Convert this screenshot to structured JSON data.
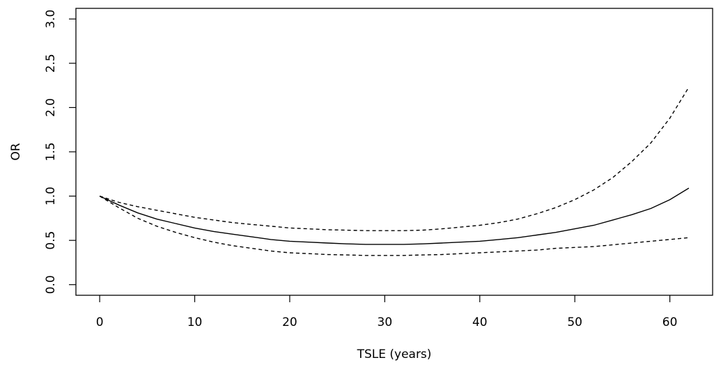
{
  "chart_data": {
    "type": "line",
    "title": "",
    "xlabel": "TSLE (years)",
    "ylabel": "OR",
    "xlim": [
      -2.5,
      64.5
    ],
    "ylim": [
      -0.12,
      3.12
    ],
    "xticks": [
      0,
      10,
      20,
      30,
      40,
      50,
      60
    ],
    "yticks": [
      0.0,
      0.5,
      1.0,
      1.5,
      2.0,
      2.5,
      3.0
    ],
    "xtick_labels": [
      "0",
      "10",
      "20",
      "30",
      "40",
      "50",
      "60"
    ],
    "ytick_labels": [
      "0.0",
      "0.5",
      "1.0",
      "1.5",
      "2.0",
      "2.5",
      "3.0"
    ],
    "grid": false,
    "legend": "none",
    "series": [
      {
        "style": "solid",
        "x": [
          0,
          2,
          4,
          6,
          8,
          10,
          12,
          14,
          16,
          18,
          20,
          22,
          24,
          26,
          28,
          30,
          32,
          34,
          36,
          38,
          40,
          42,
          44,
          46,
          48,
          50,
          52,
          54,
          56,
          58,
          60,
          62
        ],
        "y": [
          1.0,
          0.9,
          0.81,
          0.74,
          0.69,
          0.64,
          0.6,
          0.57,
          0.54,
          0.51,
          0.49,
          0.48,
          0.47,
          0.46,
          0.455,
          0.455,
          0.455,
          0.46,
          0.47,
          0.48,
          0.49,
          0.51,
          0.53,
          0.56,
          0.59,
          0.63,
          0.67,
          0.73,
          0.79,
          0.86,
          0.96,
          1.09
        ]
      },
      {
        "style": "dashed",
        "x": [
          0,
          2,
          4,
          6,
          8,
          10,
          12,
          14,
          16,
          18,
          20,
          22,
          24,
          26,
          28,
          30,
          32,
          34,
          36,
          38,
          40,
          42,
          44,
          46,
          48,
          50,
          52,
          54,
          56,
          58,
          60,
          62
        ],
        "y": [
          1.0,
          0.93,
          0.88,
          0.84,
          0.8,
          0.76,
          0.73,
          0.7,
          0.68,
          0.66,
          0.64,
          0.63,
          0.62,
          0.615,
          0.61,
          0.61,
          0.61,
          0.615,
          0.63,
          0.65,
          0.67,
          0.7,
          0.74,
          0.8,
          0.87,
          0.96,
          1.07,
          1.21,
          1.39,
          1.6,
          1.88,
          2.23
        ]
      },
      {
        "style": "dashed",
        "x": [
          0,
          2,
          4,
          6,
          8,
          10,
          12,
          14,
          16,
          18,
          20,
          22,
          24,
          26,
          28,
          30,
          32,
          34,
          36,
          38,
          40,
          42,
          44,
          46,
          48,
          50,
          52,
          54,
          56,
          58,
          60,
          62
        ],
        "y": [
          1.0,
          0.87,
          0.75,
          0.66,
          0.59,
          0.53,
          0.48,
          0.44,
          0.41,
          0.38,
          0.36,
          0.35,
          0.34,
          0.335,
          0.33,
          0.33,
          0.33,
          0.335,
          0.34,
          0.35,
          0.36,
          0.37,
          0.38,
          0.39,
          0.41,
          0.42,
          0.43,
          0.45,
          0.47,
          0.49,
          0.51,
          0.53
        ]
      }
    ]
  }
}
